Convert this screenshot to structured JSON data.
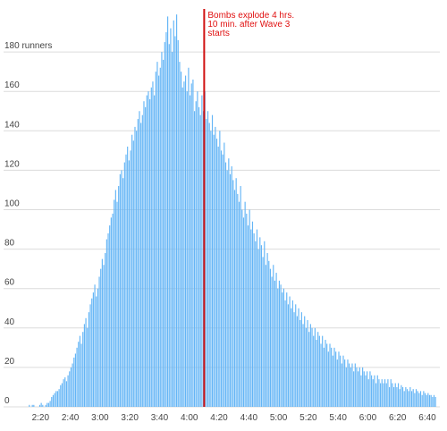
{
  "chart_data": {
    "type": "bar",
    "title": "",
    "xlabel": "",
    "ylabel": "",
    "y_unit_label": "runners",
    "ylim": [
      0,
      200
    ],
    "yticks": [
      0,
      20,
      40,
      60,
      80,
      100,
      120,
      140,
      160,
      180
    ],
    "x_tick_labels": [
      "2:20",
      "2:40",
      "3:00",
      "3:20",
      "3:40",
      "4:00",
      "4:20",
      "4:40",
      "5:00",
      "5:20",
      "5:40",
      "6:00",
      "6:20",
      "6:40"
    ],
    "x_tick_minutes": [
      140,
      160,
      180,
      200,
      220,
      240,
      260,
      280,
      300,
      320,
      340,
      360,
      380,
      400
    ],
    "x_range_minutes": [
      132,
      406
    ],
    "bin_minutes": 1,
    "bins": [
      {
        "start_minute": 132,
        "values": [
          1,
          0,
          1,
          1,
          0,
          0,
          0,
          1,
          2,
          1,
          0,
          1,
          2,
          2,
          3,
          5,
          6,
          7,
          8,
          8,
          9,
          11,
          12,
          14,
          15,
          13,
          16,
          18,
          20,
          22,
          25,
          27,
          30,
          33,
          36,
          32,
          38,
          42,
          45,
          40,
          48,
          52,
          55,
          58,
          62,
          56,
          60,
          66,
          70,
          75,
          72,
          78,
          85,
          88,
          92,
          96,
          98,
          105,
          110,
          104
        ]
      },
      {
        "start_minute": 192,
        "values": [
          112,
          118,
          120,
          116,
          124,
          128,
          132,
          125,
          130,
          138,
          135,
          142,
          140,
          146,
          150,
          144,
          148,
          155,
          152,
          158,
          160,
          156,
          162,
          165,
          158,
          170,
          175,
          168,
          172,
          180,
          176,
          185,
          190,
          198,
          184,
          192,
          180,
          196,
          188,
          199,
          186,
          175,
          170,
          162,
          165,
          168,
          160,
          172,
          158,
          164,
          166,
          150,
          155,
          160,
          152,
          148,
          158,
          150,
          160,
          146
        ]
      },
      {
        "start_minute": 252,
        "values": [
          150,
          144,
          140,
          148,
          138,
          142,
          136,
          132,
          140,
          130,
          128,
          134,
          124,
          120,
          126,
          118,
          122,
          115,
          110,
          116,
          108,
          104,
          112,
          100,
          96,
          104,
          98,
          92,
          100,
          90,
          94,
          88,
          84,
          90,
          80,
          86,
          82,
          76,
          84,
          72,
          78,
          74,
          70,
          66,
          72,
          64,
          68,
          60,
          64,
          62,
          58,
          60,
          54,
          58,
          52,
          56,
          50,
          54,
          48,
          52
        ]
      },
      {
        "start_minute": 312,
        "values": [
          46,
          50,
          44,
          48,
          42,
          46,
          40,
          44,
          38,
          42,
          40,
          36,
          40,
          34,
          38,
          36,
          32,
          36,
          30,
          34,
          32,
          28,
          32,
          30,
          26,
          30,
          28,
          24,
          28,
          26,
          22,
          26,
          24,
          20,
          24,
          22,
          20,
          22,
          18,
          22,
          20,
          18,
          20,
          16,
          20,
          18,
          16,
          18,
          14,
          18,
          16,
          14,
          16,
          12,
          16,
          14,
          12,
          14,
          12,
          14
        ]
      },
      {
        "start_minute": 372,
        "values": [
          12,
          14,
          10,
          14,
          12,
          10,
          12,
          10,
          12,
          9,
          11,
          10,
          8,
          10,
          9,
          8,
          10,
          8,
          9,
          7,
          9,
          8,
          7,
          8,
          6,
          8,
          7,
          6,
          7,
          6,
          6,
          5,
          6,
          5
        ]
      }
    ],
    "annotation": {
      "lines": [
        "Bombs explode 4 hrs.",
        "10 min. after Wave 3",
        "starts"
      ],
      "x_minute": 250
    },
    "grid": true,
    "colors": {
      "bar": "#64b5f6",
      "annotation": "#d01010",
      "grid": "#dcdcdc"
    }
  }
}
